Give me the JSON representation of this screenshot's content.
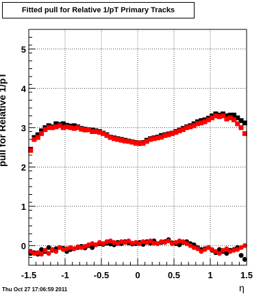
{
  "chart_data": {
    "type": "scatter",
    "title": "Fitted pull for Relative 1/pT  Primary Tracks",
    "xlabel": "η",
    "ylabel": "pull for Relative 1/pT",
    "xlim": [
      -1.5,
      1.5
    ],
    "ylim": [
      -0.5,
      5.5
    ],
    "x_ticks": [
      "-1.5",
      "-1",
      "-0.5",
      "0",
      "0.5",
      "1",
      "1.5"
    ],
    "y_ticks": [
      "0",
      "1",
      "2",
      "3",
      "4",
      "5"
    ],
    "grid": true,
    "legend": "none",
    "footer": "Thu Oct 27 17:06:59 2011",
    "x": [
      -1.475,
      -1.425,
      -1.375,
      -1.325,
      -1.275,
      -1.225,
      -1.175,
      -1.125,
      -1.075,
      -1.025,
      -0.975,
      -0.925,
      -0.875,
      -0.825,
      -0.775,
      -0.725,
      -0.675,
      -0.625,
      -0.575,
      -0.525,
      -0.475,
      -0.425,
      -0.375,
      -0.325,
      -0.275,
      -0.225,
      -0.175,
      -0.125,
      -0.075,
      -0.025,
      0.025,
      0.075,
      0.125,
      0.175,
      0.225,
      0.275,
      0.325,
      0.375,
      0.425,
      0.475,
      0.525,
      0.575,
      0.625,
      0.675,
      0.725,
      0.775,
      0.825,
      0.875,
      0.925,
      0.975,
      1.025,
      1.075,
      1.125,
      1.175,
      1.225,
      1.275,
      1.325,
      1.375,
      1.425,
      1.475
    ],
    "series": [
      {
        "color": "#000000",
        "marker": "square",
        "values": [
          2.45,
          2.75,
          2.82,
          2.92,
          3.0,
          3.05,
          3.02,
          3.1,
          3.08,
          3.1,
          3.06,
          3.04,
          3.05,
          3.02,
          2.98,
          2.96,
          2.95,
          2.94,
          2.92,
          2.9,
          2.86,
          2.82,
          2.76,
          2.74,
          2.72,
          2.7,
          2.68,
          2.66,
          2.64,
          2.62,
          2.6,
          2.62,
          2.68,
          2.72,
          2.74,
          2.76,
          2.8,
          2.82,
          2.84,
          2.86,
          2.9,
          2.94,
          2.98,
          3.02,
          3.05,
          3.1,
          3.15,
          3.18,
          3.2,
          3.24,
          3.3,
          3.35,
          3.32,
          3.35,
          3.3,
          3.32,
          3.32,
          3.25,
          3.18,
          3.12
        ]
      },
      {
        "color": "#ff0000",
        "marker": "square",
        "values": [
          2.42,
          2.7,
          2.75,
          2.85,
          2.95,
          3.0,
          3.0,
          3.02,
          3.05,
          3.0,
          3.02,
          3.0,
          2.98,
          3.0,
          2.96,
          2.94,
          2.95,
          2.9,
          2.9,
          2.88,
          2.85,
          2.8,
          2.75,
          2.72,
          2.7,
          2.68,
          2.66,
          2.65,
          2.63,
          2.6,
          2.62,
          2.6,
          2.65,
          2.7,
          2.72,
          2.74,
          2.76,
          2.8,
          2.82,
          2.85,
          2.88,
          2.92,
          2.95,
          3.0,
          3.02,
          3.05,
          3.1,
          3.12,
          3.15,
          3.2,
          3.25,
          3.3,
          3.28,
          3.3,
          3.22,
          3.25,
          3.2,
          3.1,
          3.0,
          2.85
        ]
      },
      {
        "color": "#000000",
        "marker": "circle",
        "values": [
          -0.2,
          -0.18,
          -0.22,
          -0.1,
          -0.15,
          -0.05,
          -0.12,
          -0.08,
          -0.05,
          -0.07,
          -0.15,
          -0.1,
          -0.08,
          -0.05,
          -0.02,
          -0.06,
          0.0,
          -0.05,
          0.02,
          0.05,
          0.03,
          0.06,
          0.04,
          0.02,
          0.08,
          0.05,
          0.1,
          0.07,
          0.04,
          0.05,
          0.08,
          0.03,
          0.1,
          0.06,
          0.12,
          0.05,
          0.08,
          0.1,
          0.15,
          0.07,
          0.05,
          0.02,
          0.08,
          0.1,
          0.05,
          0.02,
          -0.05,
          -0.1,
          -0.08,
          -0.05,
          -0.12,
          -0.18,
          -0.1,
          -0.15,
          -0.2,
          -0.12,
          -0.1,
          -0.05,
          -0.25,
          -0.35
        ]
      },
      {
        "color": "#ff0000",
        "marker": "circle",
        "values": [
          -0.15,
          -0.2,
          -0.18,
          -0.22,
          -0.12,
          -0.2,
          -0.1,
          -0.15,
          -0.05,
          -0.1,
          -0.08,
          -0.05,
          -0.08,
          -0.03,
          -0.05,
          -0.02,
          0.02,
          0.05,
          0.02,
          0.08,
          0.05,
          0.1,
          0.12,
          0.08,
          0.05,
          0.1,
          0.08,
          0.12,
          0.06,
          0.08,
          0.05,
          0.1,
          0.08,
          0.12,
          0.06,
          0.05,
          0.1,
          0.08,
          0.12,
          0.05,
          0.08,
          0.12,
          0.1,
          0.05,
          0.0,
          -0.05,
          -0.08,
          -0.15,
          -0.1,
          -0.05,
          -0.1,
          -0.15,
          -0.2,
          -0.12,
          -0.08,
          -0.15,
          -0.12,
          -0.1,
          -0.05,
          0.0
        ]
      }
    ]
  }
}
